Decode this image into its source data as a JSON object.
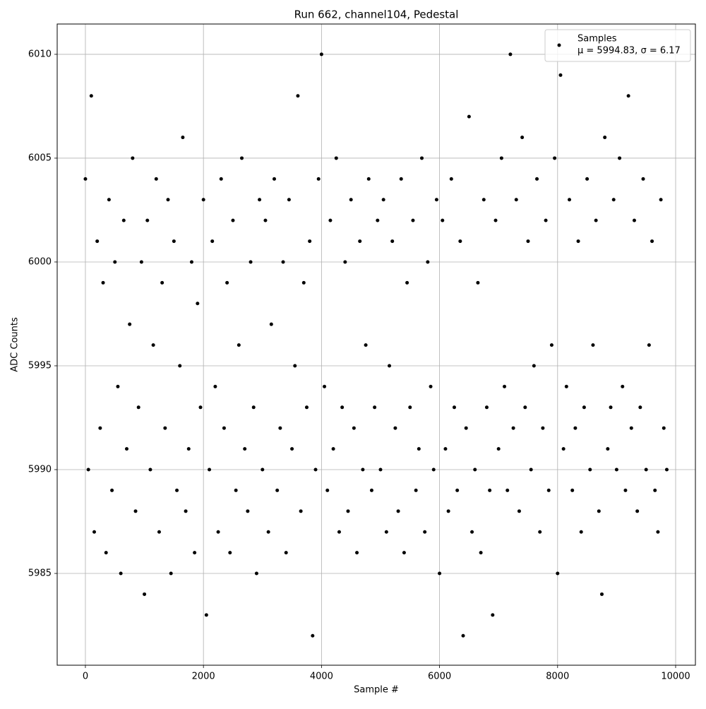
{
  "chart_data": {
    "type": "scatter",
    "title": "Run 662, channel104, Pedestal",
    "xlabel": "Sample #",
    "ylabel": "ADC Counts",
    "xlim": [
      -478,
      10335
    ],
    "ylim": [
      5980.58,
      6011.46
    ],
    "xticks": [
      0,
      2000,
      4000,
      6000,
      8000,
      10000
    ],
    "yticks": [
      5985,
      5990,
      5995,
      6000,
      6005,
      6010
    ],
    "grid": true,
    "legend": "upper right",
    "series": [
      {
        "name": "Samples",
        "color": "#000000",
        "stats_label": "μ = 5994.83, σ = 6.17",
        "x": [
          0,
          50,
          100,
          150,
          200,
          250,
          300,
          350,
          400,
          450,
          500,
          550,
          600,
          650,
          700,
          750,
          800,
          850,
          900,
          950,
          1000,
          1050,
          1100,
          1150,
          1200,
          1250,
          1300,
          1350,
          1400,
          1450,
          1500,
          1550,
          1600,
          1650,
          1700,
          1750,
          1800,
          1850,
          1900,
          1950,
          2000,
          2050,
          2100,
          2150,
          2200,
          2250,
          2300,
          2350,
          2400,
          2450,
          2500,
          2550,
          2600,
          2650,
          2700,
          2750,
          2800,
          2850,
          2900,
          2950,
          3000,
          3050,
          3100,
          3150,
          3200,
          3250,
          3300,
          3350,
          3400,
          3450,
          3500,
          3550,
          3600,
          3650,
          3700,
          3750,
          3800,
          3850,
          3900,
          3950,
          4000,
          4050,
          4100,
          4150,
          4200,
          4250,
          4300,
          4350,
          4400,
          4450,
          4500,
          4550,
          4600,
          4650,
          4700,
          4750,
          4800,
          4850,
          4900,
          4950,
          5000,
          5050,
          5100,
          5150,
          5200,
          5250,
          5300,
          5350,
          5400,
          5450,
          5500,
          5550,
          5600,
          5650,
          5700,
          5750,
          5800,
          5850,
          5900,
          5950,
          6000,
          6050,
          6100,
          6150,
          6200,
          6250,
          6300,
          6350,
          6400,
          6450,
          6500,
          6550,
          6600,
          6650,
          6700,
          6750,
          6800,
          6850,
          6900,
          6950,
          7000,
          7050,
          7100,
          7150,
          7200,
          7250,
          7300,
          7350,
          7400,
          7450,
          7500,
          7550,
          7600,
          7650,
          7700,
          7750,
          7800,
          7850,
          7900,
          7950,
          8000,
          8050,
          8100,
          8150,
          8200,
          8250,
          8300,
          8350,
          8400,
          8450,
          8500,
          8550,
          8600,
          8650,
          8700,
          8750,
          8800,
          8850,
          8900,
          8950,
          9000,
          9050,
          9100,
          9150,
          9200,
          9250,
          9300,
          9350,
          9400,
          9450,
          9500,
          9550,
          9600,
          9650,
          9700,
          9750,
          9800,
          9850
        ],
        "values": [
          6004,
          5990,
          6008,
          5987,
          6001,
          5992,
          5999,
          5986,
          6003,
          5989,
          6000,
          5994,
          5985,
          6002,
          5991,
          5997,
          6005,
          5988,
          5993,
          6000,
          5984,
          6002,
          5990,
          5996,
          6004,
          5987,
          5999,
          5992,
          6003,
          5985,
          6001,
          5989,
          5995,
          6006,
          5988,
          5991,
          6000,
          5986,
          5998,
          5993,
          6003,
          5983,
          5990,
          6001,
          5994,
          5987,
          6004,
          5992,
          5999,
          5986,
          6002,
          5989,
          5996,
          6005,
          5991,
          5988,
          6000,
          5993,
          5985,
          6003,
          5990,
          6002,
          5987,
          5997,
          6004,
          5989,
          5992,
          6000,
          5986,
          6003,
          5991,
          5995,
          6008,
          5988,
          5999,
          5993,
          6001,
          5982,
          5990,
          6004,
          6010,
          5994,
          5989,
          6002,
          5991,
          6005,
          5987,
          5993,
          6000,
          5988,
          6003,
          5992,
          5986,
          6001,
          5990,
          5996,
          6004,
          5989,
          5993,
          6002,
          5990,
          6003,
          5987,
          5995,
          6001,
          5992,
          5988,
          6004,
          5986,
          5999,
          5993,
          6002,
          5989,
          5991,
          6005,
          5987,
          6000,
          5994,
          5990,
          6003,
          5985,
          6002,
          5991,
          5988,
          6004,
          5993,
          5989,
          6001,
          5982,
          5992,
          6007,
          5987,
          5990,
          5999,
          5986,
          6003,
          5993,
          5989,
          5983,
          6002,
          5991,
          6005,
          5994,
          5989,
          6010,
          5992,
          6003,
          5988,
          6006,
          5993,
          6001,
          5990,
          5995,
          6004,
          5987,
          5992,
          6002,
          5989,
          5996,
          6005,
          5985,
          6009,
          5991,
          5994,
          6003,
          5989,
          5992,
          6001,
          5987,
          5993,
          6004,
          5990,
          5996,
          6002,
          5988,
          5984,
          6006,
          5991,
          5993,
          6003,
          5990,
          6005,
          5994,
          5989,
          6008,
          5992,
          6002,
          5988,
          5993,
          6004,
          5990,
          5996,
          6001,
          5989,
          5987,
          6003,
          5992,
          5990
        ]
      }
    ]
  }
}
